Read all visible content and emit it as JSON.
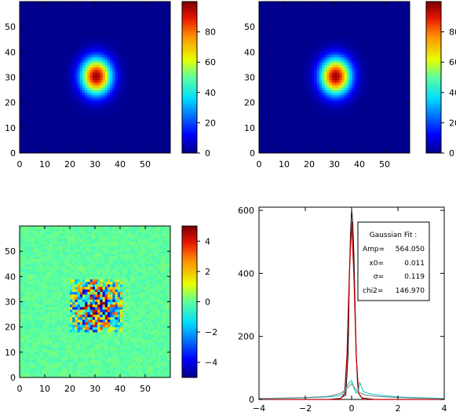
{
  "chart_data": [
    {
      "type": "heatmap",
      "name": "data image",
      "x_range": [
        0,
        59
      ],
      "y_range": [
        0,
        59
      ],
      "x_ticks": [
        "0",
        "10",
        "20",
        "30",
        "40",
        "50"
      ],
      "y_ticks": [
        "0",
        "10",
        "20",
        "30",
        "40",
        "50"
      ],
      "blob": {
        "center_x": 30,
        "center_y": 30,
        "peak": 98,
        "sigma_x": 4.2,
        "sigma_y": 5.0
      },
      "colorbar": {
        "range": [
          0,
          100
        ],
        "ticks": [
          "0",
          "20",
          "40",
          "60",
          "80"
        ],
        "tick_values": [
          0,
          20,
          40,
          60,
          80
        ]
      }
    },
    {
      "type": "heatmap",
      "name": "model image",
      "x_range": [
        0,
        59
      ],
      "y_range": [
        0,
        59
      ],
      "x_ticks": [
        "0",
        "10",
        "20",
        "30",
        "40",
        "50"
      ],
      "y_ticks": [
        "0",
        "10",
        "20",
        "30",
        "40",
        "50"
      ],
      "blob": {
        "center_x": 30,
        "center_y": 30,
        "peak": 98,
        "sigma_x": 4.2,
        "sigma_y": 5.0
      },
      "colorbar": {
        "range": [
          0,
          100
        ],
        "ticks": [
          "0",
          "20",
          "40",
          "60",
          "80"
        ],
        "tick_values": [
          0,
          20,
          40,
          60,
          80
        ]
      }
    },
    {
      "type": "heatmap",
      "name": "residual image",
      "x_range": [
        0,
        59
      ],
      "y_range": [
        0,
        59
      ],
      "x_ticks": [
        "0",
        "10",
        "20",
        "30",
        "40",
        "50"
      ],
      "y_ticks": [
        "0",
        "10",
        "20",
        "30",
        "40",
        "50"
      ],
      "residual_region": {
        "x": [
          20,
          40
        ],
        "y": [
          18,
          38
        ],
        "amplitude": 4.5
      },
      "colorbar": {
        "range": [
          -5,
          5
        ],
        "ticks": [
          "4",
          "2",
          "0",
          "−2",
          "−4"
        ],
        "tick_values": [
          4,
          2,
          0,
          -2,
          -4
        ]
      }
    },
    {
      "type": "line",
      "name": "residual histogram",
      "xlim": [
        -4,
        4
      ],
      "ylim": [
        0,
        610
      ],
      "x_ticks": [
        "−4",
        "−2",
        "0",
        "2",
        "4"
      ],
      "x_tick_values": [
        -4,
        -2,
        0,
        2,
        4
      ],
      "y_ticks": [
        "0",
        "200",
        "400",
        "600"
      ],
      "y_tick_values": [
        0,
        200,
        400,
        600
      ],
      "series": [
        {
          "color": "#000000",
          "x": [
            -4,
            -1,
            -0.5,
            -0.25,
            -0.15,
            -0.1,
            -0.05,
            0,
            0.05,
            0.1,
            0.15,
            0.2,
            0.25,
            0.3,
            0.4,
            0.5,
            1,
            4
          ],
          "y": [
            0,
            0,
            3,
            15,
            150,
            380,
            520,
            600,
            560,
            460,
            300,
            150,
            55,
            20,
            8,
            4,
            0,
            0
          ]
        },
        {
          "color": "#c00000",
          "x": [
            -4,
            -0.5,
            -0.3,
            -0.2,
            -0.1,
            0,
            0.1,
            0.2,
            0.3,
            0.5,
            4
          ],
          "y": [
            0,
            0,
            19,
            138,
            395,
            564,
            395,
            138,
            19,
            0,
            0
          ]
        },
        {
          "color": "#00c8c8",
          "x": [
            -4,
            -2,
            -1,
            -0.5,
            -0.3,
            -0.15,
            0,
            0.1,
            0.2,
            0.3,
            0.35,
            0.4,
            0.5,
            0.7,
            1,
            2,
            4
          ],
          "y": [
            2,
            5,
            8,
            12,
            25,
            50,
            60,
            35,
            20,
            30,
            55,
            45,
            25,
            20,
            15,
            8,
            3
          ]
        },
        {
          "color": "#7f7f7f",
          "x": [
            -4,
            -2,
            -1,
            -0.5,
            -0.2,
            0,
            0.1,
            0.2,
            0.4,
            0.6,
            1,
            2,
            4
          ],
          "y": [
            3,
            6,
            10,
            18,
            35,
            50,
            40,
            30,
            20,
            14,
            10,
            6,
            2
          ]
        }
      ],
      "legend": {
        "title": "Gaussian Fit :",
        "rows": [
          {
            "label": "Amp=",
            "value": "564.050"
          },
          {
            "label": "x0=",
            "value": "0.011"
          },
          {
            "label": "σ=",
            "value": "0.119"
          },
          {
            "label": "chi2=",
            "value": "146.970"
          }
        ]
      }
    }
  ]
}
